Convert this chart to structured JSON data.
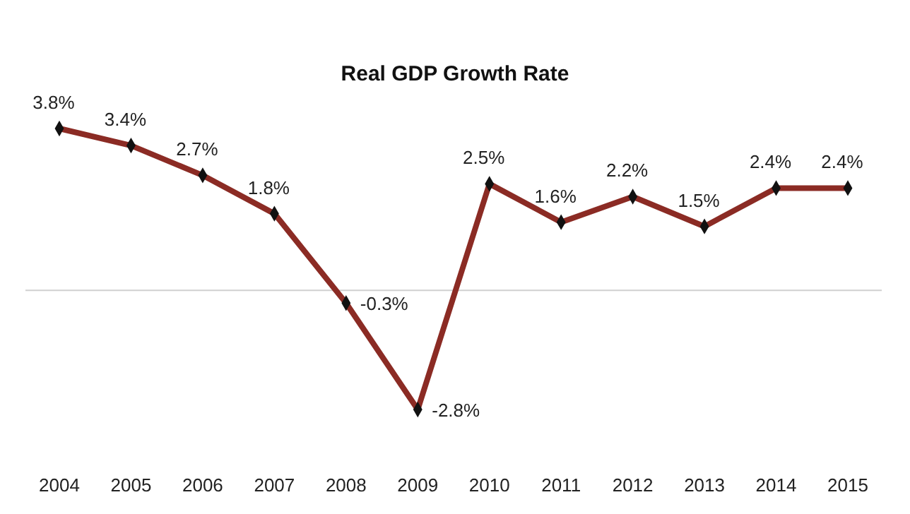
{
  "chart_data": {
    "type": "line",
    "title": "Real GDP Growth Rate",
    "categories": [
      "2004",
      "2005",
      "2006",
      "2007",
      "2008",
      "2009",
      "2010",
      "2011",
      "2012",
      "2013",
      "2014",
      "2015"
    ],
    "series": [
      {
        "color": "#8b2b24",
        "values": [
          3.8,
          3.4,
          2.7,
          1.8,
          -0.3,
          -2.8,
          2.5,
          1.6,
          2.2,
          1.5,
          2.4,
          2.4
        ],
        "value_labels": [
          "3.8%",
          "3.4%",
          "2.7%",
          "1.8%",
          "-0.3%",
          "-2.8%",
          "2.5%",
          "1.6%",
          "2.2%",
          "1.5%",
          "2.4%",
          "2.4%"
        ]
      }
    ],
    "marker": "diamond",
    "line_style": "solid"
  }
}
